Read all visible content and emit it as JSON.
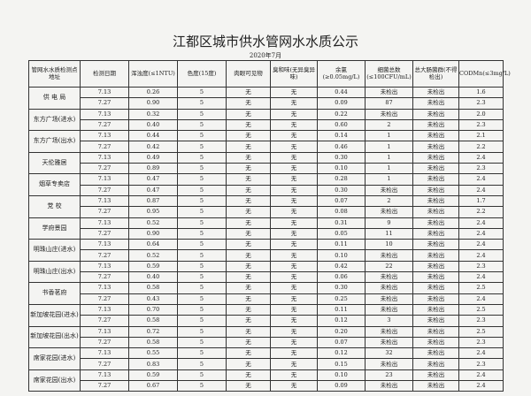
{
  "title": "江都区城市供水管网水水质公示",
  "subtitle": "2020年7月",
  "headers": [
    "管网水水质检测点地址",
    "检测日期",
    "浑浊度(≤1NTU)",
    "色度(15度)",
    "肉眼可见物",
    "臭和味(无异臭异味)",
    "余氯(≥0.05mg/L)",
    "细菌总数(≤100CFU/mL)",
    "总大肠菌群(不得检出)",
    "CODMn(≤3mg/L)"
  ],
  "sites": [
    {
      "name": "供 电 局",
      "rows": [
        [
          "7.13",
          "0.26",
          "5",
          "无",
          "无",
          "0.44",
          "未检出",
          "未检出",
          "1.6"
        ],
        [
          "7.27",
          "0.90",
          "5",
          "无",
          "无",
          "0.09",
          "87",
          "未检出",
          "2.3"
        ]
      ]
    },
    {
      "name": "东方广场(进水)",
      "rows": [
        [
          "7.13",
          "0.32",
          "5",
          "无",
          "无",
          "0.22",
          "未检出",
          "未检出",
          "2.0"
        ],
        [
          "7.27",
          "0.40",
          "5",
          "无",
          "无",
          "0.60",
          "2",
          "未检出",
          "2.3"
        ]
      ]
    },
    {
      "name": "东方广场(出水)",
      "rows": [
        [
          "7.13",
          "0.44",
          "5",
          "无",
          "无",
          "0.14",
          "1",
          "未检出",
          "2.1"
        ],
        [
          "7.27",
          "0.42",
          "5",
          "无",
          "无",
          "0.46",
          "1",
          "未检出",
          "2.2"
        ]
      ]
    },
    {
      "name": "天伦雅居",
      "rows": [
        [
          "7.13",
          "0.49",
          "5",
          "无",
          "无",
          "0.30",
          "1",
          "未检出",
          "2.4"
        ],
        [
          "7.27",
          "0.89",
          "5",
          "无",
          "无",
          "0.10",
          "1",
          "未检出",
          "2.3"
        ]
      ]
    },
    {
      "name": "烟草专卖店",
      "rows": [
        [
          "7.13",
          "0.47",
          "5",
          "无",
          "无",
          "0.28",
          "1",
          "未检出",
          "2.4"
        ],
        [
          "7.27",
          "0.47",
          "5",
          "无",
          "无",
          "0.30",
          "未检出",
          "未检出",
          "2.4"
        ]
      ]
    },
    {
      "name": "党 校",
      "rows": [
        [
          "7.13",
          "0.87",
          "5",
          "无",
          "无",
          "0.07",
          "2",
          "未检出",
          "1.7"
        ],
        [
          "7.27",
          "0.95",
          "5",
          "无",
          "无",
          "0.08",
          "未检出",
          "未检出",
          "2.2"
        ]
      ]
    },
    {
      "name": "学府景园",
      "rows": [
        [
          "7.13",
          "0.52",
          "5",
          "无",
          "无",
          "0.31",
          "9",
          "未检出",
          "2.4"
        ],
        [
          "7.27",
          "0.90",
          "5",
          "无",
          "无",
          "0.05",
          "11",
          "未检出",
          "2.4"
        ]
      ]
    },
    {
      "name": "明珠山庄(进水)",
      "rows": [
        [
          "7.13",
          "0.64",
          "5",
          "无",
          "无",
          "0.11",
          "10",
          "未检出",
          "2.4"
        ],
        [
          "7.27",
          "0.52",
          "5",
          "无",
          "无",
          "0.10",
          "未检出",
          "未检出",
          "2.4"
        ]
      ]
    },
    {
      "name": "明珠山庄(出水)",
      "rows": [
        [
          "7.13",
          "0.59",
          "5",
          "无",
          "无",
          "0.42",
          "22",
          "未检出",
          "2.3"
        ],
        [
          "7.27",
          "0.40",
          "5",
          "无",
          "无",
          "0.06",
          "未检出",
          "未检出",
          "2.4"
        ]
      ]
    },
    {
      "name": "书香茗府",
      "rows": [
        [
          "7.13",
          "0.58",
          "5",
          "无",
          "无",
          "0.30",
          "未检出",
          "未检出",
          "2.5"
        ],
        [
          "7.27",
          "0.43",
          "5",
          "无",
          "无",
          "0.25",
          "未检出",
          "未检出",
          "2.4"
        ]
      ]
    },
    {
      "name": "新加坡花园(进水)",
      "rows": [
        [
          "7.13",
          "0.70",
          "5",
          "无",
          "无",
          "0.11",
          "未检出",
          "未检出",
          "2.5"
        ],
        [
          "7.27",
          "0.58",
          "5",
          "无",
          "无",
          "0.12",
          "3",
          "未检出",
          "2.3"
        ]
      ]
    },
    {
      "name": "新加坡花园(出水)",
      "rows": [
        [
          "7.13",
          "0.72",
          "5",
          "无",
          "无",
          "0.20",
          "未检出",
          "未检出",
          "2.5"
        ],
        [
          "7.27",
          "0.58",
          "5",
          "无",
          "无",
          "0.07",
          "未检出",
          "未检出",
          "2.3"
        ]
      ]
    },
    {
      "name": "席家花园(进水)",
      "rows": [
        [
          "7.13",
          "0.55",
          "5",
          "无",
          "无",
          "0.12",
          "32",
          "未检出",
          "2.4"
        ],
        [
          "7.27",
          "0.83",
          "5",
          "无",
          "无",
          "0.15",
          "未检出",
          "未检出",
          "2.3"
        ]
      ]
    },
    {
      "name": "席家花园(出水)",
      "rows": [
        [
          "7.13",
          "0.59",
          "5",
          "无",
          "无",
          "0.10",
          "23",
          "未检出",
          "2.4"
        ],
        [
          "7.27",
          "0.67",
          "5",
          "无",
          "无",
          "0.09",
          "未检出",
          "未检出",
          "2.4"
        ]
      ]
    }
  ]
}
